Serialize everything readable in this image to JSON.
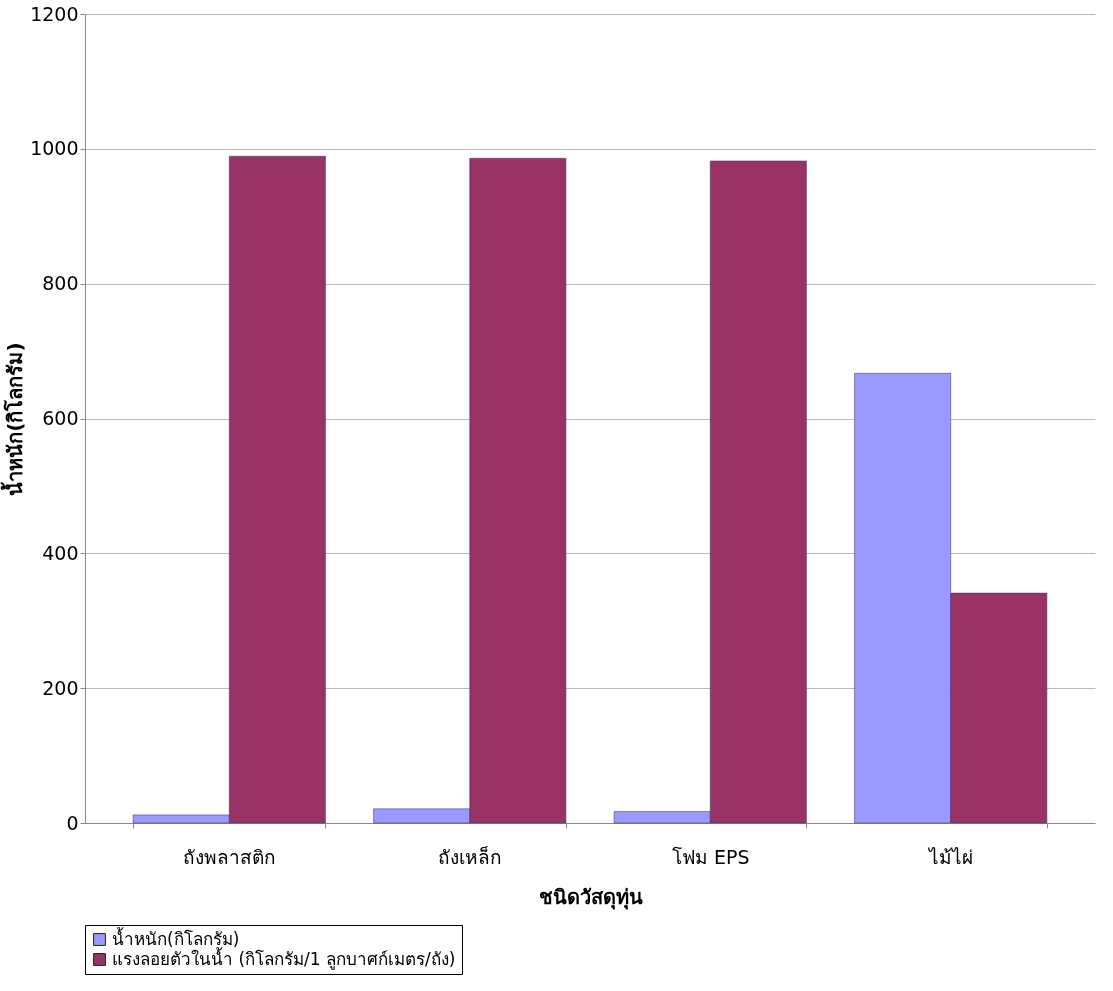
{
  "chart_data": {
    "type": "bar",
    "xlabel": "ชนิดวัสดุทุ่น",
    "ylabel": "น้ำหนัก(กิโลกรัม)",
    "categories": [
      "ถังพลาสติก",
      "ถังเหล็ก",
      "โฟม EPS",
      "ไม้ไผ่"
    ],
    "series": [
      {
        "name": "น้ำหนัก(กิโลกรัม)",
        "color": "#9999ff",
        "values": [
          12,
          21,
          17,
          667
        ]
      },
      {
        "name": "แรงลอยตัวในน้ำ (กิโลกรัม/1 ลูกบาศก์เมตร/ถัง)",
        "color": "#993366",
        "values": [
          989,
          986,
          982,
          341
        ]
      }
    ],
    "ylim": [
      0,
      1200
    ],
    "yticks": [
      0,
      200,
      400,
      600,
      800,
      1000,
      1200
    ],
    "grid": "y",
    "legend": "bottom"
  }
}
